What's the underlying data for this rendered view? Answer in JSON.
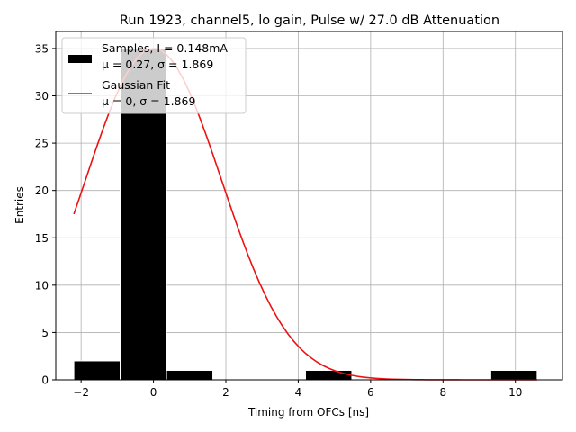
{
  "chart_data": {
    "type": "bar",
    "title": "Run 1923, channel5, lo gain, Pulse w/ 27.0 dB Attenuation",
    "xlabel": "Timing from OFCs [ns]",
    "ylabel": "Entries",
    "xlim": [
      -2.7,
      11.3
    ],
    "ylim": [
      0,
      36.8
    ],
    "xticks": [
      -2,
      0,
      2,
      4,
      6,
      8,
      10
    ],
    "xtick_labels": [
      "−2",
      "0",
      "2",
      "4",
      "6",
      "8",
      "10"
    ],
    "yticks": [
      0,
      5,
      10,
      15,
      20,
      25,
      30,
      35
    ],
    "ytick_labels": [
      "0",
      "5",
      "10",
      "15",
      "20",
      "25",
      "30",
      "35"
    ],
    "grid": true,
    "legend_position": "top-left",
    "histogram": {
      "name": "Samples",
      "color": "#000000",
      "edgecolor": "#ffffff",
      "bins": [
        {
          "x0": -2.2,
          "x1": -0.92,
          "count": 2
        },
        {
          "x0": -0.92,
          "x1": 0.36,
          "count": 35
        },
        {
          "x0": 0.36,
          "x1": 1.64,
          "count": 1
        },
        {
          "x0": 4.2,
          "x1": 5.48,
          "count": 1
        },
        {
          "x0": 9.32,
          "x1": 10.6,
          "count": 1
        }
      ]
    },
    "fit": {
      "name": "Gaussian Fit",
      "color": "#ee1111",
      "amplitude": 35,
      "mu": 0,
      "sigma": 1.869,
      "x_start": -2.2,
      "x_end": 10.6
    },
    "legend": [
      {
        "kind": "patch",
        "line1": "Samples, I = 0.148mA",
        "line2": "μ = 0.27, σ = 1.869"
      },
      {
        "kind": "line",
        "line1": "Gaussian Fit",
        "line2": "μ = 0, σ = 1.869"
      }
    ]
  }
}
